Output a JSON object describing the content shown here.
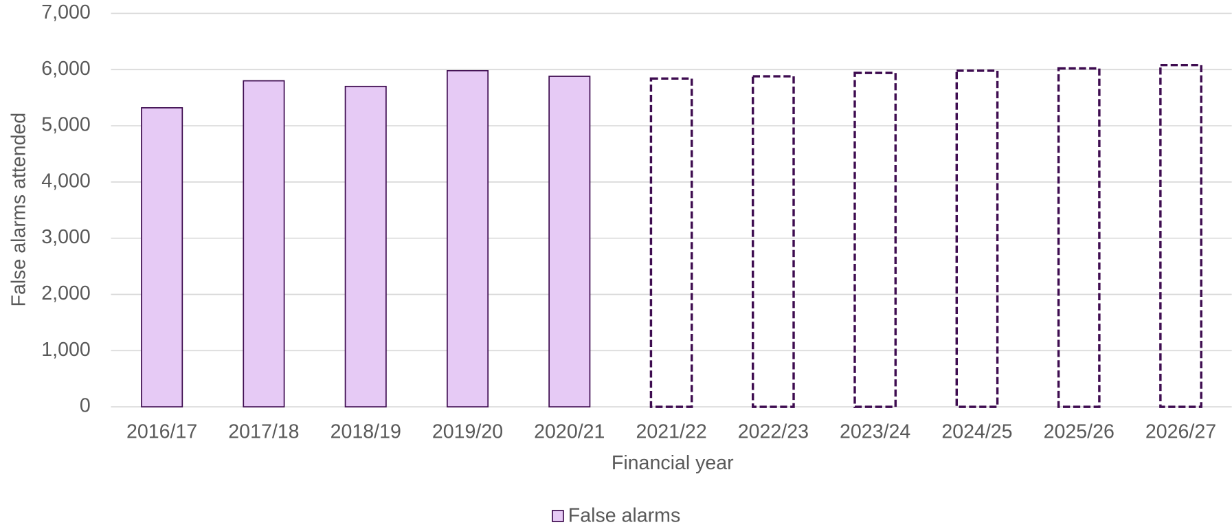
{
  "chart_data": {
    "type": "bar",
    "x_label": "Financial year",
    "y_label": "False alarms attended",
    "categories": [
      "2016/17",
      "2017/18",
      "2018/19",
      "2019/20",
      "2020/21",
      "2021/22",
      "2022/23",
      "2023/24",
      "2024/25",
      "2025/26",
      "2026/27"
    ],
    "series": [
      {
        "name": "False alarms",
        "color": "#e6caf5",
        "edge_color": "#3e0c50",
        "values": [
          5320,
          5800,
          5700,
          5980,
          5880,
          5840,
          5880,
          5940,
          5980,
          6020,
          6080
        ]
      }
    ],
    "dashed": [
      false,
      false,
      false,
      false,
      false,
      true,
      true,
      true,
      true,
      true,
      true
    ],
    "ylim": [
      0,
      7000
    ],
    "yticks": [
      0,
      {
        "value": 1000,
        "label": "1,000"
      },
      {
        "value": 2000,
        "label": "2,000"
      },
      {
        "value": 3000,
        "label": "3,000"
      },
      {
        "value": 4000,
        "label": "4,000"
      },
      {
        "value": 5000,
        "label": "5,000"
      },
      {
        "value": 6000,
        "label": "6,000"
      },
      {
        "value": 7000,
        "label": "7,000"
      }
    ],
    "grid": true,
    "legend": "bottom"
  }
}
